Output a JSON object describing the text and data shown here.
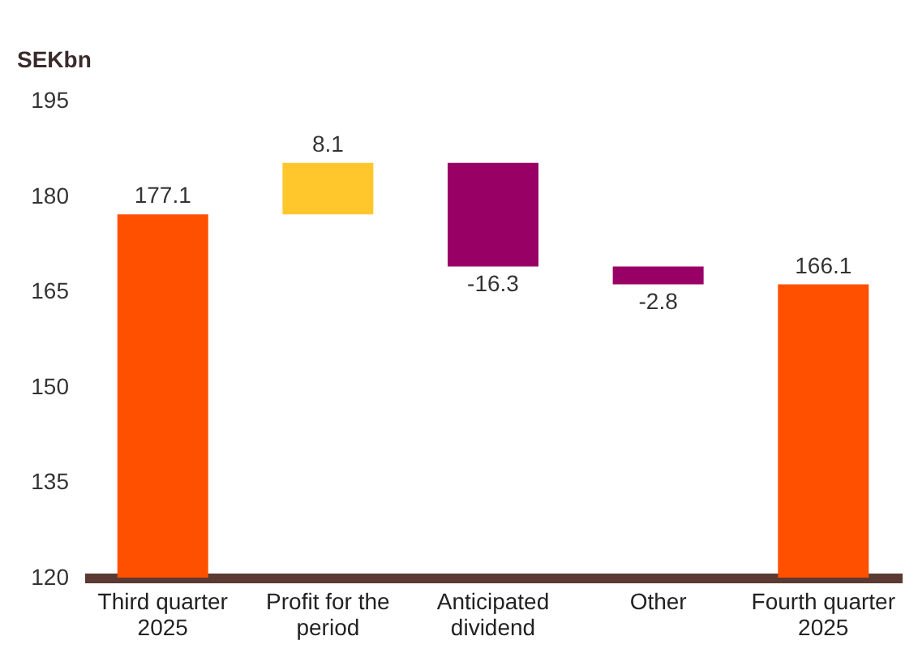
{
  "chart_data": {
    "type": "bar",
    "ylabel": "SEKbn",
    "categories": [
      "Third quarter 2025",
      "Profit for the period",
      "Anticipated dividend",
      "Other",
      "Fourth quarter 2025"
    ],
    "base": [
      120,
      177.1,
      185.2,
      168.9,
      120
    ],
    "values": [
      57.1,
      8.1,
      -16.3,
      -2.8,
      46.1
    ],
    "colors": [
      "#ff5000",
      "#ffc72c",
      "#990066",
      "#990066",
      "#ff5000"
    ],
    "value_labels": [
      "177.1",
      "8.1",
      "-16.3",
      "-2.8",
      "166.1"
    ],
    "ylim": [
      120,
      195
    ],
    "yticks": [
      120,
      135,
      150,
      165,
      180,
      195
    ],
    "grid": false
  }
}
